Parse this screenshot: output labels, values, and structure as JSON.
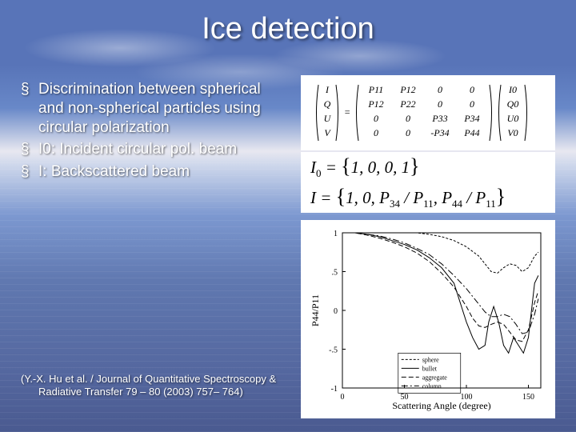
{
  "title": "Ice detection",
  "bullets": [
    "Discrimination between spherical and non-spherical particles using circular polarization",
    "I0: Incident circular pol. beam",
    "I: Backscattered beam"
  ],
  "citation": "(Y.-X. Hu et al. / Journal of Quantitative Spectroscopy & Radiative Transfer 79 – 80 (2003) 757– 764)",
  "matrix": {
    "vectors": {
      "left": [
        "I",
        "Q",
        "U",
        "V"
      ],
      "right": [
        "I0",
        "Q0",
        "U0",
        "V0"
      ]
    },
    "rows": [
      [
        "P11",
        "P12",
        "0",
        "0"
      ],
      [
        "P12",
        "P22",
        "0",
        "0"
      ],
      [
        "0",
        "0",
        "P33",
        "P34"
      ],
      [
        "0",
        "0",
        "-P34",
        "P44"
      ]
    ],
    "fontsize": 12,
    "text_color": "#000000",
    "bg": "#ffffff"
  },
  "equations": {
    "i0": {
      "lhs": "I0",
      "rhs": "{1, 0, 0, 1}"
    },
    "i": {
      "lhs": "I",
      "rhs": "{1, 0, P34 / P11, P44 / P11}"
    },
    "fontsize": 21,
    "text_color": "#000000",
    "bg": "#ffffff"
  },
  "chart": {
    "type": "line",
    "xlabel": "Scattering Angle (degree)",
    "ylabel": "P44/P11",
    "xlim": [
      0,
      160
    ],
    "ylim": [
      -1,
      1
    ],
    "xtick_step": 50,
    "ytick_step": 0.5,
    "label_fontsize": 12,
    "tick_fontsize": 10,
    "text_color": "#000000",
    "axis_color": "#000000",
    "bg": "#ffffff",
    "line_color": "#000000",
    "line_width": 1,
    "legend": {
      "x_anchor": 45,
      "y_anchor": -0.55,
      "fontsize": 8,
      "border_color": "#000000",
      "entries": [
        {
          "label": "sphere",
          "dash": "3,2"
        },
        {
          "label": "bullet",
          "dash": "none"
        },
        {
          "label": "aggregate",
          "dash": "6,3"
        },
        {
          "label": "column",
          "dash": "8,3,2,3"
        }
      ]
    },
    "series": [
      {
        "name": "sphere",
        "dash": "3,2",
        "x": [
          0,
          10,
          20,
          30,
          40,
          50,
          60,
          70,
          80,
          90,
          100,
          110,
          115,
          120,
          125,
          130,
          135,
          140,
          145,
          150,
          155,
          158
        ],
        "y": [
          1,
          1,
          1,
          1,
          1,
          1,
          1,
          0.98,
          0.95,
          0.9,
          0.82,
          0.7,
          0.6,
          0.5,
          0.48,
          0.55,
          0.6,
          0.58,
          0.5,
          0.55,
          0.7,
          0.75
        ]
      },
      {
        "name": "bullet",
        "dash": "none",
        "x": [
          0,
          10,
          20,
          30,
          40,
          50,
          60,
          70,
          80,
          90,
          95,
          100,
          105,
          110,
          115,
          118,
          122,
          126,
          130,
          134,
          138,
          142,
          146,
          150,
          155,
          158
        ],
        "y": [
          1,
          1,
          0.98,
          0.95,
          0.9,
          0.85,
          0.78,
          0.68,
          0.55,
          0.35,
          0.1,
          -0.15,
          -0.35,
          -0.5,
          -0.45,
          -0.15,
          0.05,
          -0.15,
          -0.45,
          -0.55,
          -0.35,
          -0.45,
          -0.55,
          -0.35,
          0.35,
          0.45
        ]
      },
      {
        "name": "aggregate",
        "dash": "6,3",
        "x": [
          0,
          10,
          20,
          30,
          40,
          50,
          60,
          70,
          80,
          90,
          100,
          105,
          110,
          115,
          120,
          125,
          130,
          135,
          140,
          145,
          150,
          155,
          158
        ],
        "y": [
          1,
          1,
          0.97,
          0.93,
          0.88,
          0.82,
          0.74,
          0.63,
          0.48,
          0.3,
          0.05,
          -0.1,
          -0.2,
          -0.22,
          -0.18,
          -0.15,
          -0.18,
          -0.28,
          -0.38,
          -0.4,
          -0.25,
          0.1,
          0.25
        ]
      },
      {
        "name": "column",
        "dash": "8,3,2,3",
        "x": [
          0,
          10,
          20,
          30,
          40,
          50,
          60,
          70,
          80,
          90,
          100,
          110,
          115,
          120,
          125,
          130,
          135,
          140,
          145,
          150,
          155,
          158
        ],
        "y": [
          1,
          1,
          0.98,
          0.96,
          0.92,
          0.87,
          0.8,
          0.72,
          0.6,
          0.45,
          0.28,
          0.08,
          -0.02,
          -0.08,
          -0.08,
          -0.05,
          -0.08,
          -0.18,
          -0.3,
          -0.28,
          -0.05,
          0.15
        ]
      }
    ]
  },
  "colors": {
    "title_text": "#ffffff",
    "body_text": "#ffffff",
    "shadow": "rgba(0,0,0,0.6)",
    "panel_bg": "#ffffff"
  },
  "typography": {
    "title_fontsize": 38,
    "bullet_fontsize": 19,
    "citation_fontsize": 13,
    "font_family": "Arial"
  }
}
